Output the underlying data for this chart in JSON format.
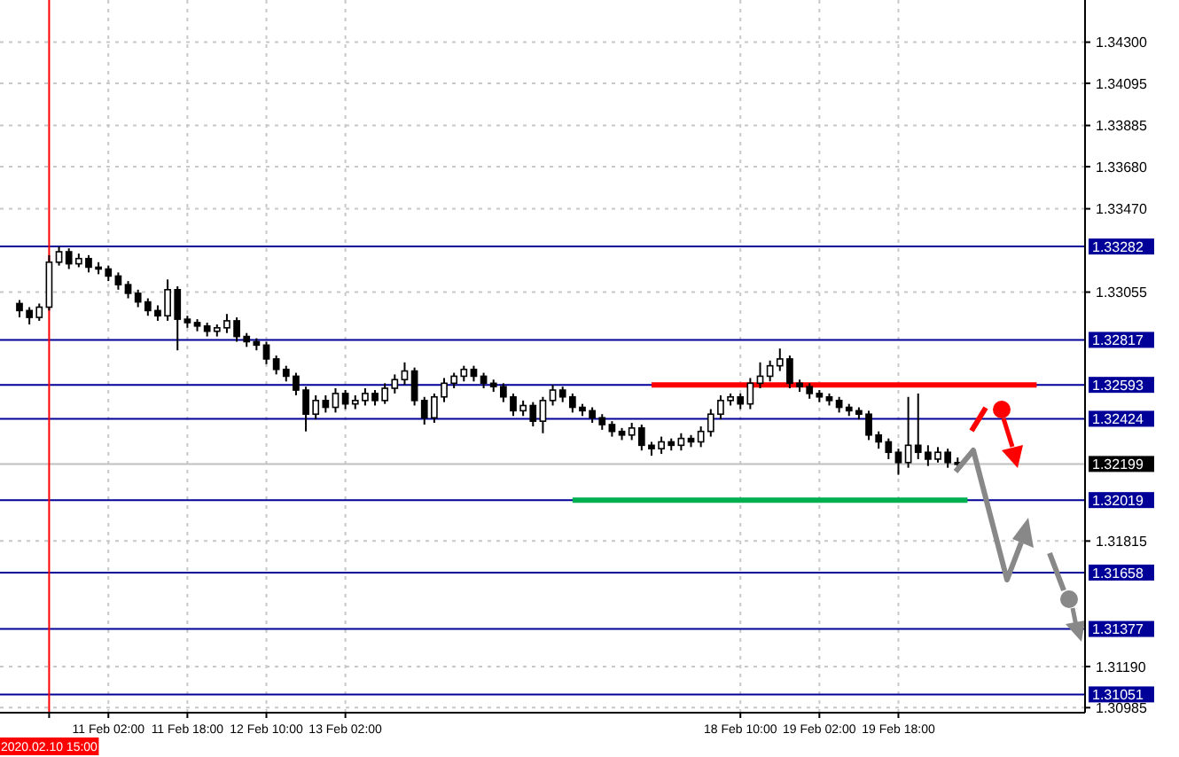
{
  "chart_data": {
    "type": "candlestick",
    "color": "#000000",
    "grid": true,
    "categories": [
      null,
      null,
      null,
      "2020.02.10 15:00",
      null,
      null,
      null,
      null,
      null,
      "11 Feb 02:00",
      null,
      null,
      null,
      null,
      null,
      null,
      null,
      "11 Feb 18:00",
      null,
      null,
      null,
      null,
      null,
      null,
      null,
      "12 Feb 10:00",
      null,
      null,
      null,
      null,
      null,
      null,
      null,
      "13 Feb 02:00",
      null,
      null,
      null,
      null,
      null,
      null,
      null,
      null,
      null,
      null,
      null,
      null,
      null,
      null,
      null,
      null,
      null,
      null,
      null,
      null,
      null,
      null,
      null,
      null,
      null,
      null,
      null,
      null,
      null,
      null,
      null,
      null,
      null,
      null,
      null,
      null,
      null,
      null,
      null,
      "18 Feb 10:00",
      null,
      null,
      null,
      null,
      null,
      null,
      null,
      "19 Feb 02:00",
      null,
      null,
      null,
      null,
      null,
      null,
      null,
      "19 Feb 18:00",
      null,
      null,
      null,
      null,
      null,
      null,
      null,
      null,
      null,
      null,
      null,
      null,
      null,
      null,
      null,
      null,
      null,
      null
    ],
    "ohlc": [
      [
        1.32998,
        1.33015,
        1.32929,
        1.32963
      ],
      [
        1.32963,
        1.3298,
        1.32894,
        1.32929
      ],
      [
        1.32929,
        1.32998,
        1.32912,
        1.3298
      ],
      [
        1.3298,
        1.33239,
        1.32963,
        1.33204
      ],
      [
        1.33204,
        1.33282,
        1.33187,
        1.33256
      ],
      [
        1.33256,
        1.33273,
        1.3317,
        1.33196
      ],
      [
        1.33196,
        1.33247,
        1.33179,
        1.33222
      ],
      [
        1.33222,
        1.33239,
        1.33153,
        1.33179
      ],
      [
        1.33179,
        1.33204,
        1.33144,
        1.3317
      ],
      [
        1.3317,
        1.33187,
        1.3311,
        1.33135
      ],
      [
        1.33135,
        1.33153,
        1.33067,
        1.33092
      ],
      [
        1.33092,
        1.3311,
        1.33024,
        1.33049
      ],
      [
        1.33049,
        1.33067,
        1.3298,
        1.33006
      ],
      [
        1.33006,
        1.33024,
        1.32937,
        1.32963
      ],
      [
        1.32963,
        1.32989,
        1.32912,
        1.32937
      ],
      [
        1.32937,
        1.33118,
        1.32912,
        1.33067
      ],
      [
        1.33067,
        1.33084,
        1.32765,
        1.3292
      ],
      [
        1.3292,
        1.32937,
        1.32877,
        1.32903
      ],
      [
        1.32903,
        1.3292,
        1.3286,
        1.32886
      ],
      [
        1.32886,
        1.32903,
        1.32834,
        1.3286
      ],
      [
        1.3286,
        1.32894,
        1.32834,
        1.32877
      ],
      [
        1.32877,
        1.32946,
        1.32851,
        1.32912
      ],
      [
        1.32912,
        1.32929,
        1.32808,
        1.32834
      ],
      [
        1.32834,
        1.32851,
        1.32782,
        1.32808
      ],
      [
        1.32808,
        1.32825,
        1.32765,
        1.32791
      ],
      [
        1.32791,
        1.32808,
        1.32696,
        1.32722
      ],
      [
        1.32722,
        1.32739,
        1.32645,
        1.3267
      ],
      [
        1.3267,
        1.32688,
        1.3261,
        1.32636
      ],
      [
        1.32636,
        1.32653,
        1.32541,
        1.32567
      ],
      [
        1.32567,
        1.32584,
        1.32361,
        1.32447
      ],
      [
        1.32447,
        1.32541,
        1.32421,
        1.32515
      ],
      [
        1.32515,
        1.32541,
        1.32455,
        1.32481
      ],
      [
        1.32481,
        1.32576,
        1.32455,
        1.3255
      ],
      [
        1.3255,
        1.32567,
        1.32472,
        1.32498
      ],
      [
        1.32498,
        1.32541,
        1.32472,
        1.32515
      ],
      [
        1.32515,
        1.32576,
        1.3249,
        1.3255
      ],
      [
        1.3255,
        1.32567,
        1.3249,
        1.32515
      ],
      [
        1.32515,
        1.32601,
        1.32498,
        1.32576
      ],
      [
        1.32576,
        1.32645,
        1.3255,
        1.32619
      ],
      [
        1.32619,
        1.32705,
        1.32593,
        1.32662
      ],
      [
        1.32662,
        1.32679,
        1.3249,
        1.32515
      ],
      [
        1.32515,
        1.32533,
        1.32395,
        1.32429
      ],
      [
        1.32429,
        1.3255,
        1.32404,
        1.32533
      ],
      [
        1.32533,
        1.32627,
        1.32507,
        1.32601
      ],
      [
        1.32601,
        1.32653,
        1.32576,
        1.32636
      ],
      [
        1.32636,
        1.32688,
        1.3261,
        1.3267
      ],
      [
        1.3267,
        1.32688,
        1.3261,
        1.32636
      ],
      [
        1.32636,
        1.32653,
        1.32576,
        1.32601
      ],
      [
        1.32601,
        1.32619,
        1.32558,
        1.32584
      ],
      [
        1.32584,
        1.32601,
        1.32507,
        1.32533
      ],
      [
        1.32533,
        1.3255,
        1.32438,
        1.32464
      ],
      [
        1.32464,
        1.32515,
        1.32438,
        1.3249
      ],
      [
        1.3249,
        1.32507,
        1.32386,
        1.32412
      ],
      [
        1.32412,
        1.32533,
        1.32352,
        1.32515
      ],
      [
        1.32515,
        1.32593,
        1.3249,
        1.32567
      ],
      [
        1.32567,
        1.32584,
        1.32507,
        1.32533
      ],
      [
        1.32533,
        1.3255,
        1.32455,
        1.32481
      ],
      [
        1.32481,
        1.32498,
        1.32438,
        1.32464
      ],
      [
        1.32464,
        1.32481,
        1.32404,
        1.32429
      ],
      [
        1.32429,
        1.32447,
        1.32369,
        1.32395
      ],
      [
        1.32395,
        1.32412,
        1.32335,
        1.32361
      ],
      [
        1.32361,
        1.32378,
        1.32318,
        1.32343
      ],
      [
        1.32343,
        1.32404,
        1.32318,
        1.32378
      ],
      [
        1.32378,
        1.32395,
        1.32266,
        1.32292
      ],
      [
        1.32292,
        1.32309,
        1.3224,
        1.32275
      ],
      [
        1.32275,
        1.32335,
        1.32249,
        1.32309
      ],
      [
        1.32309,
        1.32326,
        1.32266,
        1.32292
      ],
      [
        1.32292,
        1.32352,
        1.32266,
        1.32326
      ],
      [
        1.32326,
        1.32343,
        1.32283,
        1.32309
      ],
      [
        1.32309,
        1.32386,
        1.32283,
        1.32361
      ],
      [
        1.32361,
        1.32472,
        1.32335,
        1.32447
      ],
      [
        1.32447,
        1.32541,
        1.32421,
        1.32515
      ],
      [
        1.32515,
        1.3255,
        1.3249,
        1.32533
      ],
      [
        1.32533,
        1.3255,
        1.32472,
        1.32498
      ],
      [
        1.32498,
        1.32627,
        1.32472,
        1.32601
      ],
      [
        1.32601,
        1.32705,
        1.32576,
        1.32636
      ],
      [
        1.32636,
        1.32714,
        1.3261,
        1.32688
      ],
      [
        1.32688,
        1.32774,
        1.32662,
        1.32722
      ],
      [
        1.32722,
        1.32739,
        1.32576,
        1.32601
      ],
      [
        1.32601,
        1.32619,
        1.32558,
        1.32584
      ],
      [
        1.32584,
        1.32601,
        1.32524,
        1.3255
      ],
      [
        1.3255,
        1.32567,
        1.32507,
        1.32533
      ],
      [
        1.32533,
        1.3255,
        1.3249,
        1.32515
      ],
      [
        1.32515,
        1.32533,
        1.32455,
        1.32481
      ],
      [
        1.32481,
        1.32498,
        1.32438,
        1.32464
      ],
      [
        1.32464,
        1.32481,
        1.32421,
        1.32447
      ],
      [
        1.32447,
        1.32464,
        1.32318,
        1.32343
      ],
      [
        1.32343,
        1.32361,
        1.32275,
        1.32309
      ],
      [
        1.32309,
        1.32326,
        1.32223,
        1.32257
      ],
      [
        1.32257,
        1.32275,
        1.32145,
        1.32206
      ],
      [
        1.32206,
        1.32533,
        1.3218,
        1.32292
      ],
      [
        1.32292,
        1.3255,
        1.32223,
        1.32257
      ],
      [
        1.32257,
        1.32292,
        1.32189,
        1.32223
      ],
      [
        1.32223,
        1.32283,
        1.32206,
        1.32257
      ],
      [
        1.32257,
        1.32275,
        1.3218,
        1.32206
      ],
      [
        1.32206,
        1.32231,
        1.32163,
        1.32199
      ],
      null,
      null,
      null,
      null,
      null,
      null,
      null,
      null,
      null,
      null,
      null,
      null
    ],
    "series": [
      {
        "type": "line",
        "color": "#ff0000",
        "values": [
          null,
          null,
          null,
          null,
          null,
          null,
          null,
          null,
          null,
          null,
          null,
          null,
          null,
          null,
          null,
          null,
          null,
          null,
          null,
          null,
          null,
          null,
          null,
          null,
          null,
          null,
          null,
          null,
          null,
          null,
          null,
          null,
          null,
          null,
          null,
          null,
          null,
          null,
          null,
          null,
          null,
          null,
          null,
          null,
          null,
          null,
          null,
          null,
          null,
          null,
          null,
          null,
          null,
          null,
          null,
          null,
          null,
          null,
          null,
          null,
          null,
          null,
          null,
          null,
          1.32593,
          1.32593,
          1.32593,
          1.32593,
          1.32593,
          1.32593,
          1.32593,
          1.32593,
          1.32593,
          1.32593,
          1.32593,
          1.32593,
          1.32593,
          1.32593,
          1.32593,
          1.32593,
          1.32593,
          1.32593,
          1.32593,
          1.32593,
          1.32593,
          1.32593,
          1.32593,
          1.32593,
          1.32593,
          1.32593,
          1.32593,
          1.32593,
          1.32593,
          1.32593,
          1.32593,
          1.32593,
          1.32593,
          1.32593,
          1.32593,
          1.32593,
          1.32593,
          1.32593,
          1.32593,
          1.32593,
          null,
          null,
          null,
          null
        ]
      },
      {
        "type": "line",
        "color": "#00b050",
        "values": [
          null,
          null,
          null,
          null,
          null,
          null,
          null,
          null,
          null,
          null,
          null,
          null,
          null,
          null,
          null,
          null,
          null,
          null,
          null,
          null,
          null,
          null,
          null,
          null,
          null,
          null,
          null,
          null,
          null,
          null,
          null,
          null,
          null,
          null,
          null,
          null,
          null,
          null,
          null,
          null,
          null,
          null,
          null,
          null,
          null,
          null,
          null,
          null,
          null,
          null,
          null,
          null,
          null,
          null,
          null,
          null,
          1.32019,
          1.32019,
          1.32019,
          1.32019,
          1.32019,
          1.32019,
          1.32019,
          1.32019,
          1.32019,
          1.32019,
          1.32019,
          1.32019,
          1.32019,
          1.32019,
          1.32019,
          1.32019,
          1.32019,
          1.32019,
          1.32019,
          1.32019,
          1.32019,
          1.32019,
          1.32019,
          1.32019,
          1.32019,
          1.32019,
          1.32019,
          1.32019,
          1.32019,
          1.32019,
          1.32019,
          1.32019,
          1.32019,
          1.32019,
          1.32019,
          1.32019,
          1.32019,
          1.32019,
          1.32019,
          1.32019,
          1.32019,
          null,
          null,
          null,
          null,
          null,
          null,
          null,
          null,
          null,
          null,
          null
        ]
      }
    ],
    "ylim": [
      1.3096,
      1.3451
    ],
    "yticks": [
      {
        "value": 1.343,
        "label": "1.34300"
      },
      {
        "value": 1.34095,
        "label": "1.34095"
      },
      {
        "value": 1.33885,
        "label": "1.33885"
      },
      {
        "value": 1.3368,
        "label": "1.33680"
      },
      {
        "value": 1.3347,
        "label": "1.33470"
      },
      {
        "value": 1.33055,
        "label": "1.33055"
      },
      {
        "value": 1.31815,
        "label": "1.31815"
      },
      {
        "value": 1.3119,
        "label": "1.31190"
      },
      {
        "value": 1.30985,
        "label": "1.30985"
      }
    ],
    "ref_lines": [
      {
        "axis": "y",
        "value": 1.33282,
        "label": "1.33282",
        "color": "#000099"
      },
      {
        "axis": "y",
        "value": 1.32817,
        "label": "1.32817",
        "color": "#000099"
      },
      {
        "axis": "y",
        "value": 1.32593,
        "label": "1.32593",
        "color": "#000099"
      },
      {
        "axis": "y",
        "value": 1.32424,
        "label": "1.32424",
        "color": "#000099"
      },
      {
        "axis": "y",
        "value": 1.32199,
        "label": "1.32199",
        "color": "#c0c0c0"
      },
      {
        "axis": "y",
        "value": 1.32019,
        "label": "1.32019",
        "color": "#000099"
      },
      {
        "axis": "y",
        "value": 1.31658,
        "label": "1.31658",
        "color": "#000099"
      },
      {
        "axis": "y",
        "value": 1.31377,
        "label": "1.31377",
        "color": "#000099"
      },
      {
        "axis": "y",
        "value": 1.31051,
        "label": "1.31051",
        "color": "#000099"
      },
      {
        "axis": "x",
        "value": "2020.02.10 15:00",
        "color": "#ff0000"
      }
    ]
  }
}
